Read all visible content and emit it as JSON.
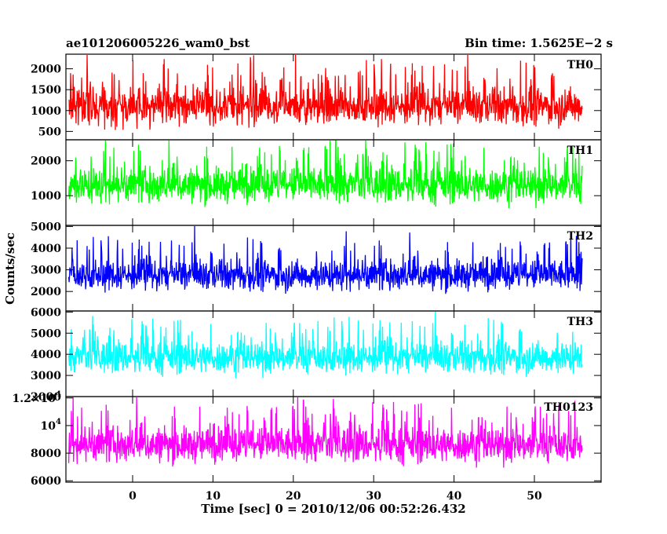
{
  "chart_data": {
    "type": "line",
    "title": "ae101206005226_wam0_bst",
    "subtitle": "Bin time: 1.5625E−2 s",
    "xlabel": "Time [sec] 0 = 2010/12/06 00:52:26.432",
    "ylabel": "Counts/sec",
    "xlim": [
      -8.3,
      58.3
    ],
    "xticks": [
      {
        "v": 0,
        "label": "0"
      },
      {
        "v": 10,
        "label": "10"
      },
      {
        "v": 20,
        "label": "20"
      },
      {
        "v": 30,
        "label": "30"
      },
      {
        "v": 40,
        "label": "40"
      },
      {
        "v": 50,
        "label": "50"
      }
    ],
    "data_x_range": [
      -7.95,
      55.95
    ],
    "panels": [
      {
        "name": "TH0",
        "color": "#ff0000",
        "ylim": [
          300,
          2350
        ],
        "baseline": 1100,
        "noise": 270,
        "lo_clip": 380,
        "yticks": [
          {
            "v": 500,
            "label": "500"
          },
          {
            "v": 1000,
            "label": "1000"
          },
          {
            "v": 1500,
            "label": "1500"
          },
          {
            "v": 2000,
            "label": "2000"
          }
        ]
      },
      {
        "name": "TH1",
        "color": "#00ff00",
        "ylim": [
          150,
          2600
        ],
        "baseline": 1300,
        "noise": 310,
        "lo_clip": 430,
        "yticks": [
          {
            "v": 1000,
            "label": "1000"
          },
          {
            "v": 2000,
            "label": "2000"
          }
        ]
      },
      {
        "name": "TH2",
        "color": "#0000ff",
        "ylim": [
          1100,
          5050
        ],
        "baseline": 2750,
        "noise": 430,
        "lo_clip": 1500,
        "yticks": [
          {
            "v": 2000,
            "label": "2000"
          },
          {
            "v": 3000,
            "label": "3000"
          },
          {
            "v": 4000,
            "label": "4000"
          },
          {
            "v": 5000,
            "label": "5000"
          }
        ]
      },
      {
        "name": "TH3",
        "color": "#00ffff",
        "ylim": [
          2000,
          6050
        ],
        "baseline": 3850,
        "noise": 460,
        "lo_clip": 2650,
        "yticks": [
          {
            "v": 2000,
            "label": "2000"
          },
          {
            "v": 3000,
            "label": "3000"
          },
          {
            "v": 4000,
            "label": "4000"
          },
          {
            "v": 5000,
            "label": "5000"
          },
          {
            "v": 6000,
            "label": "6000"
          }
        ]
      },
      {
        "name": "TH0123",
        "color": "#ff00ff",
        "ylim": [
          5900,
          12100
        ],
        "baseline": 8600,
        "noise": 780,
        "lo_clip": 6300,
        "yticks": [
          {
            "v": 6000,
            "label": "6000"
          },
          {
            "v": 8000,
            "label": "8000"
          },
          {
            "v": 10000,
            "label": "10",
            "sup": "4"
          },
          {
            "v": 12000,
            "label": "1.2×10",
            "sup": "4"
          }
        ]
      }
    ]
  }
}
